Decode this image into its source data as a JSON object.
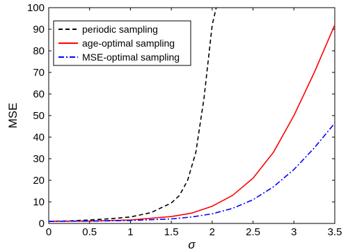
{
  "chart_data": {
    "type": "line",
    "xlabel": "σ",
    "ylabel": "MSE",
    "xlim": [
      0,
      3.5
    ],
    "ylim": [
      0,
      100
    ],
    "x_ticks": [
      "0",
      "0.5",
      "1",
      "1.5",
      "2",
      "2.5",
      "3",
      "3.5"
    ],
    "y_ticks": [
      "0",
      "10",
      "20",
      "30",
      "40",
      "50",
      "60",
      "70",
      "80",
      "90",
      "100"
    ],
    "grid": false,
    "legend_position": "top-left",
    "series": [
      {
        "name": "periodic sampling",
        "color": "#000000",
        "style": "dashed",
        "x": [
          0,
          0.25,
          0.5,
          0.75,
          1.0,
          1.25,
          1.5,
          1.6,
          1.7,
          1.8,
          1.9,
          2.0,
          2.05
        ],
        "y": [
          1.0,
          1.2,
          1.6,
          2.2,
          3.0,
          5.0,
          9.5,
          13,
          20,
          33,
          58,
          92,
          100
        ]
      },
      {
        "name": "age-optimal sampling",
        "color": "#ff0000",
        "style": "solid",
        "x": [
          0,
          0.5,
          1.0,
          1.5,
          1.75,
          2.0,
          2.25,
          2.5,
          2.75,
          3.0,
          3.25,
          3.5
        ],
        "y": [
          1.0,
          1.1,
          1.6,
          3.2,
          4.8,
          8.0,
          13,
          21,
          33,
          50,
          70,
          92
        ]
      },
      {
        "name": "MSE-optimal sampling",
        "color": "#0000ff",
        "style": "dashdot",
        "x": [
          0,
          0.5,
          1.0,
          1.5,
          1.75,
          2.0,
          2.25,
          2.5,
          2.75,
          3.0,
          3.25,
          3.5
        ],
        "y": [
          1.0,
          1.1,
          1.4,
          2.1,
          3.0,
          4.5,
          7.0,
          11,
          17,
          25,
          35,
          46.5
        ]
      }
    ]
  }
}
